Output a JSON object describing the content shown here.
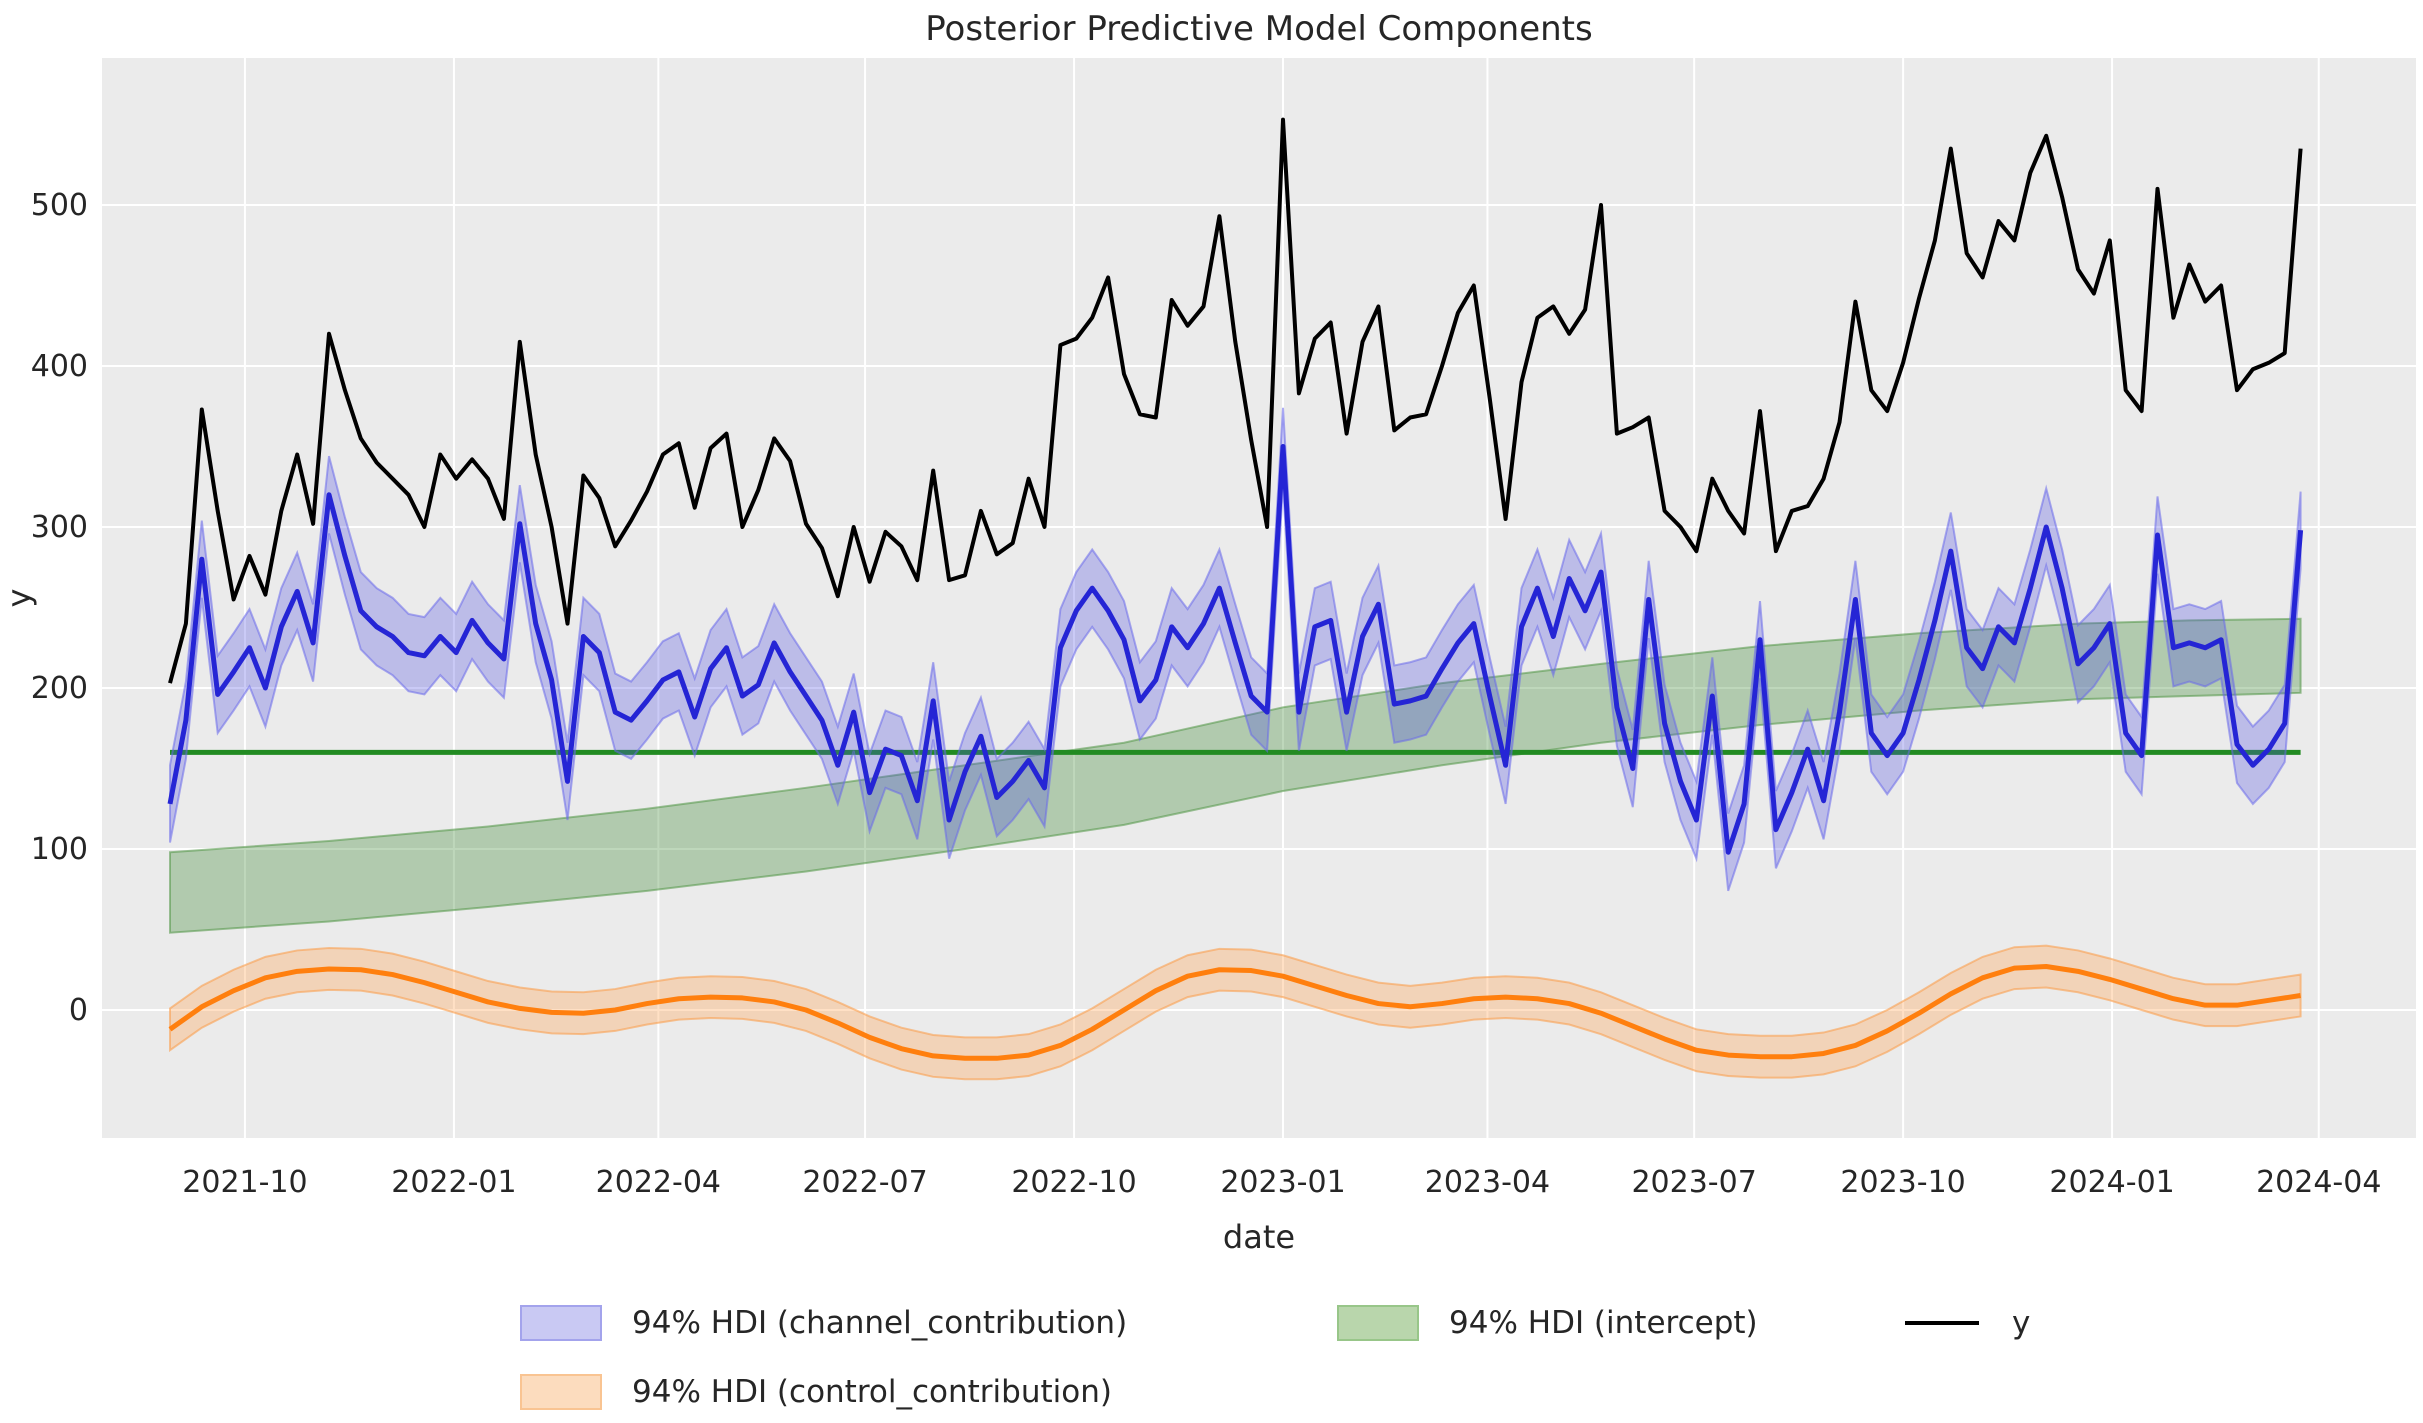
{
  "figure": {
    "title": "Posterior Predictive Model Components",
    "xlabel": "date",
    "ylabel": "y"
  },
  "legend": {
    "items": [
      {
        "label": "94% HDI (channel_contribution)",
        "type": "patch",
        "fill": "#c9c9f3",
        "border": "#a3a3ec"
      },
      {
        "label": "94% HDI (intercept)",
        "type": "patch",
        "fill": "#b9d6ac",
        "border": "#98c689"
      },
      {
        "label": "y",
        "type": "line",
        "color": "#000000"
      },
      {
        "label": "94% HDI (control_contribution)",
        "type": "patch",
        "fill": "#fcdcbe",
        "border": "#f9c492"
      }
    ]
  },
  "chart_data": {
    "type": "line",
    "title": "Posterior Predictive Model Components",
    "xlabel": "date",
    "ylabel": "y",
    "plot_background": "#ebebeb",
    "grid": true,
    "grid_color": "#ffffff",
    "x_start_date": "2021-08-29",
    "x_freq_days": 7,
    "n_points": 135,
    "x_tick_labels": [
      "2021-10",
      "2022-01",
      "2022-04",
      "2022-07",
      "2022-10",
      "2023-01",
      "2023-04",
      "2023-07",
      "2023-10",
      "2024-01",
      "2024-04"
    ],
    "y_ticks": [
      0,
      100,
      200,
      300,
      400,
      500
    ],
    "ylim": [
      -78,
      590
    ],
    "series": [
      {
        "name": "y",
        "kind": "line",
        "color": "#000000",
        "values": [
          203,
          240,
          373,
          310,
          255,
          282,
          258,
          310,
          345,
          302,
          420,
          385,
          355,
          340,
          330,
          320,
          300,
          345,
          330,
          342,
          330,
          305,
          415,
          345,
          300,
          240,
          332,
          318,
          288,
          304,
          322,
          345,
          352,
          312,
          349,
          358,
          300,
          323,
          355,
          341,
          302,
          287,
          257,
          300,
          266,
          297,
          288,
          267,
          335,
          267,
          270,
          310,
          283,
          290,
          330,
          300,
          413,
          417,
          430,
          455,
          395,
          370,
          368,
          441,
          425,
          437,
          493,
          415,
          354,
          300,
          553,
          383,
          417,
          427,
          358,
          415,
          437,
          360,
          368,
          370,
          400,
          433,
          450,
          380,
          305,
          390,
          430,
          437,
          420,
          435,
          500,
          358,
          362,
          368,
          310,
          300,
          285,
          330,
          310,
          296,
          372,
          285,
          310,
          313,
          330,
          365,
          440,
          385,
          372,
          402,
          442,
          478,
          535,
          470,
          455,
          490,
          478,
          520,
          543,
          505,
          460,
          445,
          478,
          385,
          372,
          510,
          430,
          463,
          440,
          450,
          385,
          398,
          402,
          408,
          535
        ]
      },
      {
        "name": "channel_contribution",
        "kind": "line_with_hdi",
        "hdi_label": "94% HDI (channel_contribution)",
        "color": "#2525d5",
        "band_fill": "rgba(80,80,224,0.30)",
        "band_edge": "rgba(105,105,235,0.55)",
        "hdi_half_width": 24,
        "values": [
          128,
          180,
          280,
          196,
          210,
          225,
          200,
          238,
          260,
          228,
          320,
          282,
          248,
          238,
          232,
          222,
          220,
          232,
          222,
          242,
          228,
          218,
          302,
          240,
          205,
          142,
          232,
          222,
          185,
          180,
          192,
          205,
          210,
          182,
          212,
          225,
          195,
          202,
          228,
          210,
          195,
          180,
          152,
          185,
          135,
          162,
          158,
          130,
          192,
          118,
          148,
          170,
          132,
          142,
          155,
          138,
          225,
          248,
          262,
          248,
          230,
          192,
          205,
          238,
          225,
          240,
          262,
          228,
          195,
          185,
          350,
          185,
          238,
          242,
          185,
          232,
          252,
          190,
          192,
          195,
          212,
          228,
          240,
          195,
          152,
          238,
          262,
          232,
          268,
          248,
          272,
          188,
          150,
          255,
          178,
          142,
          118,
          195,
          98,
          128,
          230,
          112,
          135,
          162,
          130,
          185,
          255,
          172,
          158,
          172,
          205,
          242,
          285,
          225,
          212,
          238,
          228,
          262,
          300,
          262,
          215,
          225,
          240,
          172,
          158,
          295,
          225,
          228,
          225,
          230,
          165,
          152,
          162,
          178,
          298
        ]
      },
      {
        "name": "intercept",
        "kind": "flat_line_with_hdi",
        "hdi_label": "94% HDI (intercept)",
        "color": "#228b22",
        "band_fill": "rgba(70,140,60,0.35)",
        "band_edge": "rgba(80,150,70,0.55)",
        "mean": 160,
        "hdi_anchors_week_lo_hi": [
          [
            0,
            48,
            98
          ],
          [
            10,
            55,
            105
          ],
          [
            20,
            64,
            114
          ],
          [
            30,
            74,
            125
          ],
          [
            40,
            86,
            138
          ],
          [
            50,
            100,
            152
          ],
          [
            60,
            115,
            166
          ],
          [
            70,
            136,
            188
          ],
          [
            80,
            152,
            203
          ],
          [
            90,
            166,
            215
          ],
          [
            100,
            177,
            226
          ],
          [
            110,
            186,
            234
          ],
          [
            120,
            193,
            240
          ],
          [
            127,
            195,
            242
          ],
          [
            134,
            197,
            243
          ]
        ]
      },
      {
        "name": "control_contribution",
        "kind": "line_with_hdi",
        "hdi_label": "94% HDI (control_contribution)",
        "color": "#ff7f0e",
        "band_fill": "rgba(255,165,90,0.35)",
        "band_edge": "rgba(250,160,80,0.6)",
        "hdi_half_width": 13,
        "x_step_weeks": 2,
        "values": [
          -12,
          2,
          12,
          20,
          24,
          25.5,
          25,
          22,
          17,
          11,
          5,
          1,
          -1.5,
          -2,
          0,
          4,
          7,
          8,
          7.5,
          5,
          0,
          -8,
          -17,
          -24,
          -28.5,
          -30,
          -30,
          -28,
          -22,
          -12,
          0,
          12,
          21,
          25,
          24.5,
          21,
          15,
          9,
          4,
          2,
          4,
          7,
          8,
          7,
          4,
          -2,
          -10,
          -18,
          -25,
          -28,
          -29,
          -29,
          -27,
          -22,
          -13,
          -2,
          10,
          20,
          26,
          27,
          24,
          19,
          13,
          7,
          3,
          3,
          6,
          9
        ]
      }
    ]
  }
}
